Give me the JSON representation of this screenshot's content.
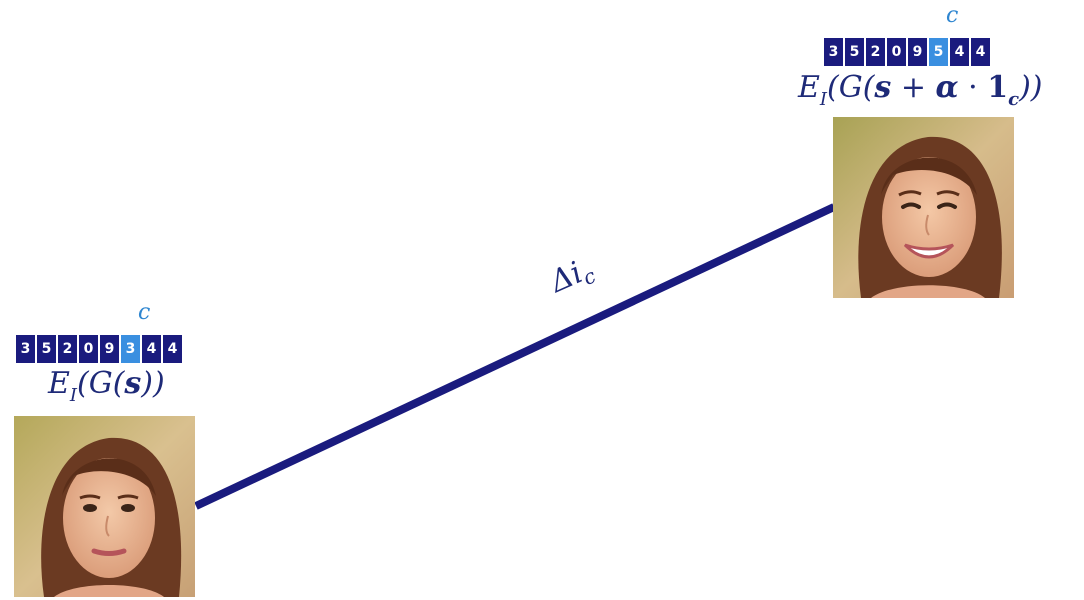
{
  "delta": {
    "symbol": "Δi",
    "subscript": "c"
  },
  "left": {
    "channel_label": "c",
    "code": [
      "3",
      "5",
      "2",
      "0",
      "9",
      "3",
      "4",
      "4"
    ],
    "highlight_index": 5,
    "formula": {
      "e": "E",
      "e_sub": "I",
      "open": "(G(",
      "s": "s",
      "close": "))"
    },
    "face": "neutral-face-image"
  },
  "right": {
    "channel_label": "c",
    "code": [
      "3",
      "5",
      "2",
      "0",
      "9",
      "5",
      "4",
      "4"
    ],
    "highlight_index": 5,
    "formula": {
      "e": "E",
      "e_sub": "I",
      "open": "(G(",
      "s": "s",
      "plus": " + ",
      "alpha": "α",
      "dot": " · ",
      "one": "1",
      "one_sub": "c",
      "close": "))"
    },
    "face": "smiling-face-image"
  },
  "colors": {
    "navy": "#1a1b7e",
    "highlight": "#3a8fe0",
    "text": "#1e2a78",
    "channel": "#2f86d0"
  }
}
